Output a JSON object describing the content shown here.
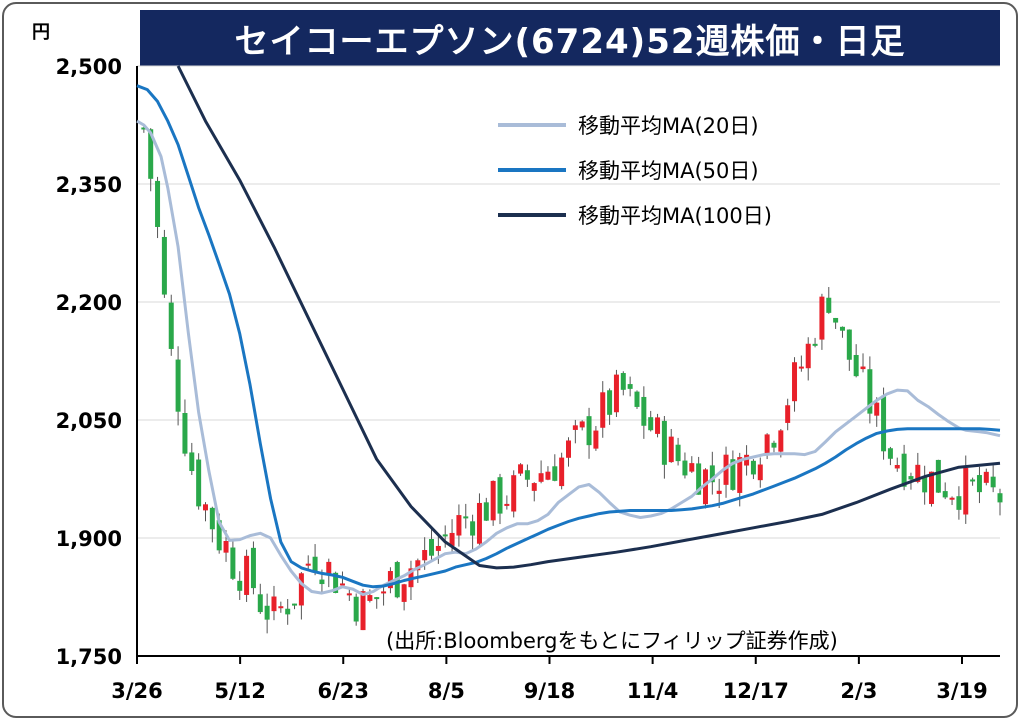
{
  "title": "セイコーエプソン(6724)52週株価・日足",
  "unit": "円",
  "source": "(出所:Bloombergをもとにフィリップ証券作成)",
  "colors": {
    "title_bg": "#14285f",
    "up": "#e8202a",
    "down": "#2aa84a",
    "ma20": "#a9bcd8",
    "ma50": "#1a76c2",
    "ma100": "#1c2f4f",
    "grid": "#d9d9d9"
  },
  "chart_data": {
    "type": "candlestick",
    "title": "セイコーエプソン(6724)52週株価・日足",
    "ylabel": "円",
    "ylim": [
      1750,
      2500
    ],
    "yticks": [
      1750,
      1900,
      2050,
      2200,
      2350,
      2500
    ],
    "ytick_labels": [
      "1,750",
      "1,900",
      "2,050",
      "2,200",
      "2,350",
      "2,500"
    ],
    "xtick_labels": [
      "3/26",
      "5/12",
      "6/23",
      "8/5",
      "9/18",
      "11/4",
      "12/17",
      "2/3",
      "3/19"
    ],
    "grid": true,
    "legend_position": "top-right",
    "series": [
      {
        "name": "移動平均MA(20日)",
        "key": "ma20",
        "x": [
          0,
          2,
          4,
          7,
          9,
          12,
          15,
          18,
          21,
          24,
          27,
          30,
          33,
          36,
          39,
          42,
          45,
          48,
          51,
          54,
          57,
          60,
          63,
          66,
          69,
          72,
          75,
          78,
          81,
          84,
          87,
          90,
          93,
          96,
          99,
          102,
          105,
          108,
          111,
          114,
          117,
          120,
          123,
          126,
          129,
          132,
          135,
          138,
          141,
          144,
          147,
          150,
          153,
          156,
          159,
          162,
          165,
          168,
          171,
          174,
          177,
          180,
          183,
          186,
          189,
          192,
          195,
          198,
          201,
          204,
          207,
          210,
          213,
          216,
          219,
          222,
          225,
          228,
          231,
          234,
          237,
          240,
          242,
          244,
          246,
          248,
          250,
          252
        ],
        "values": [
          2430,
          2425,
          2415,
          2385,
          2345,
          2270,
          2160,
          2060,
          1985,
          1920,
          1897,
          1898,
          1903,
          1906,
          1900,
          1878,
          1858,
          1842,
          1832,
          1830,
          1833,
          1838,
          1835,
          1828,
          1832,
          1840,
          1846,
          1852,
          1860,
          1866,
          1873,
          1880,
          1882,
          1880,
          1886,
          1895,
          1906,
          1913,
          1918,
          1918,
          1922,
          1930,
          1945,
          1955,
          1965,
          1968,
          1958,
          1945,
          1933,
          1929,
          1926,
          1928,
          1931,
          1937,
          1945,
          1953,
          1965,
          1975,
          1986,
          1995,
          2000,
          2003,
          2006,
          2007,
          2007,
          2007,
          2006,
          2010,
          2022,
          2035,
          2045,
          2055,
          2065,
          2075,
          2083,
          2088,
          2087,
          2075,
          2067,
          2057,
          2048,
          2040,
          2037,
          2036,
          2035,
          2034,
          2032,
          2030
        ]
      },
      {
        "name": "移動平均MA(50日)",
        "key": "ma50",
        "x": [
          0,
          3,
          6,
          9,
          12,
          15,
          18,
          21,
          24,
          27,
          30,
          33,
          36,
          39,
          42,
          45,
          48,
          51,
          54,
          57,
          60,
          63,
          66,
          69,
          72,
          75,
          78,
          81,
          84,
          87,
          90,
          93,
          96,
          99,
          102,
          105,
          108,
          111,
          114,
          117,
          120,
          123,
          126,
          129,
          132,
          135,
          138,
          141,
          144,
          147,
          150,
          153,
          156,
          159,
          162,
          165,
          168,
          171,
          174,
          177,
          180,
          183,
          186,
          189,
          192,
          195,
          198,
          201,
          204,
          207,
          210,
          213,
          216,
          219,
          222,
          225,
          228,
          231,
          234,
          237,
          240,
          243,
          246,
          249,
          252
        ],
        "values": [
          2475,
          2470,
          2455,
          2430,
          2400,
          2360,
          2320,
          2285,
          2248,
          2210,
          2160,
          2095,
          2020,
          1950,
          1895,
          1870,
          1862,
          1858,
          1855,
          1853,
          1850,
          1845,
          1840,
          1838,
          1839,
          1842,
          1846,
          1849,
          1852,
          1855,
          1858,
          1863,
          1866,
          1869,
          1874,
          1880,
          1887,
          1893,
          1899,
          1905,
          1911,
          1916,
          1921,
          1925,
          1928,
          1931,
          1933,
          1934,
          1935,
          1935,
          1935,
          1935,
          1935,
          1936,
          1937,
          1939,
          1941,
          1944,
          1948,
          1952,
          1956,
          1961,
          1966,
          1971,
          1976,
          1982,
          1988,
          1995,
          2003,
          2012,
          2020,
          2027,
          2033,
          2036,
          2038,
          2039,
          2039,
          2039,
          2039,
          2039,
          2039,
          2039,
          2039,
          2038,
          2037
        ]
      },
      {
        "name": "移動平均MA(100日)",
        "key": "ma100",
        "x": [
          12,
          20,
          30,
          40,
          50,
          60,
          70,
          80,
          90,
          100,
          105,
          110,
          115,
          120,
          130,
          140,
          150,
          160,
          170,
          180,
          190,
          200,
          210,
          220,
          230,
          240,
          252
        ],
        "values": [
          2500,
          2430,
          2355,
          2270,
          2180,
          2090,
          2000,
          1940,
          1895,
          1865,
          1862,
          1863,
          1866,
          1870,
          1876,
          1882,
          1889,
          1897,
          1905,
          1913,
          1921,
          1930,
          1945,
          1962,
          1978,
          1990,
          1995
        ]
      }
    ],
    "candles": {
      "x_start": 2,
      "x_step": 2,
      "close": [
        2420,
        2360,
        2290,
        2200,
        2130,
        2080,
        2030,
        1990,
        1960,
        1940,
        1920,
        1900,
        1890,
        1870,
        1860,
        1850,
        1840,
        1820,
        1810,
        1800,
        1810,
        1820,
        1830,
        1850,
        1870,
        1880,
        1870,
        1860,
        1850,
        1840,
        1830,
        1820,
        1815,
        1820,
        1825,
        1835,
        1845,
        1850,
        1860,
        1865,
        1870,
        1875,
        1880,
        1890,
        1900,
        1910,
        1920,
        1925,
        1930,
        1935,
        1940,
        1945,
        1950,
        1955,
        1960,
        1970,
        1975,
        1980,
        1985,
        1990,
        1995,
        2000,
        2010,
        2020,
        2030,
        2040,
        2050,
        2060,
        2070,
        2080,
        2085,
        2070,
        2060,
        2050,
        2040,
        2030,
        2020,
        2010,
        2000,
        1995,
        1990,
        1985,
        1980,
        1975,
        1980,
        1985,
        1990,
        1995,
        2000,
        2010,
        2020,
        2030,
        2040,
        2060,
        2080,
        2100,
        2120,
        2140,
        2170,
        2190,
        2210,
        2180,
        2150,
        2130,
        2110,
        2090,
        2070,
        2050,
        2030,
        2010,
        2000,
        1995,
        1990,
        1985,
        1980,
        1975,
        1970,
        1968,
        1966,
        1964,
        1962,
        1960,
        1958,
        1956,
        1954,
        1952
      ]
    }
  }
}
